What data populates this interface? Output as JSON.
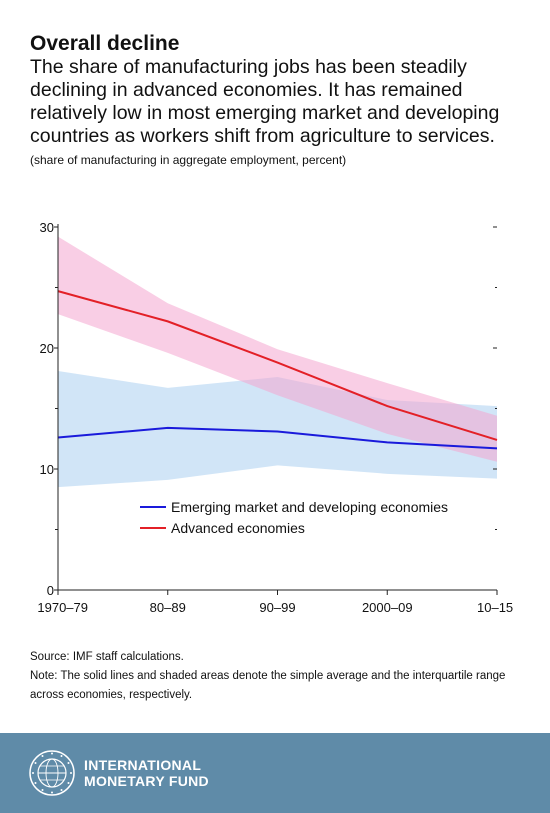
{
  "header": {
    "title": "Overall decline",
    "subtitle": "The share of manufacturing jobs has been steadily declining in advanced economies. It has remained relatively low in most emerging market and developing countries as workers shift from agriculture to services.",
    "units": "(share of manufacturing in aggregate employment, percent)"
  },
  "chart_data": {
    "type": "line",
    "title": "Overall decline",
    "ylabel": "",
    "xlabel": "",
    "categories": [
      "1970–79",
      "80–89",
      "90–99",
      "2000–09",
      "10–15"
    ],
    "ylim": [
      0,
      30
    ],
    "yticks": [
      0,
      10,
      20,
      30
    ],
    "grid": false,
    "legend_position": "lower-middle",
    "series": [
      {
        "name": "Emerging market and developing economies",
        "color": "#1a1adb",
        "band_color": "#cfe4f7",
        "values": [
          12.6,
          13.4,
          13.1,
          12.2,
          11.7
        ],
        "iqr_low": [
          8.5,
          9.1,
          10.3,
          9.6,
          9.2
        ],
        "iqr_high": [
          18.1,
          16.7,
          17.6,
          15.7,
          15.2
        ]
      },
      {
        "name": "Advanced economies",
        "color": "#e32027",
        "band_color": "#f4a6cf",
        "values": [
          24.7,
          22.2,
          18.8,
          15.2,
          12.4
        ],
        "iqr_low": [
          22.8,
          19.6,
          16.1,
          12.9,
          10.6
        ],
        "iqr_high": [
          29.2,
          23.7,
          19.9,
          17.1,
          14.4
        ]
      }
    ]
  },
  "footer": {
    "source": "Source: IMF staff calculations.",
    "note": "Note: The solid lines and shaded areas denote the simple average and the interquartile range across economies, respectively."
  },
  "brand": {
    "name_line1": "INTERNATIONAL",
    "name_line2": "MONETARY FUND",
    "seal_text": "INTERNATIONAL MONETARY FUND",
    "band_color": "#5f8ba8"
  }
}
